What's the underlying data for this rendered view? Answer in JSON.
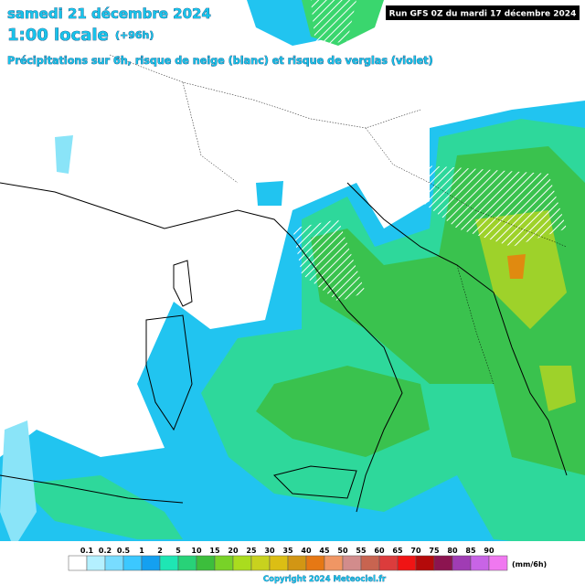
{
  "header": {
    "date": "samedi 21 décembre 2024",
    "time": "1:00 locale",
    "lead": "(+96h)",
    "subtitle": "Précipitations sur 6h, risque de neige (blanc) et risque de verglas (violet)",
    "run": "Run GFS 0Z du mardi 17 décembre 2024"
  },
  "legend": {
    "values": [
      "0.1",
      "0.2",
      "0.5",
      "1",
      "2",
      "5",
      "10",
      "15",
      "20",
      "25",
      "30",
      "35",
      "40",
      "45",
      "50",
      "55",
      "60",
      "65",
      "70",
      "75",
      "80",
      "85",
      "90"
    ],
    "unit": "(mm/6h)"
  },
  "footer": {
    "copyright": "Copyright 2024 Meteociel.fr"
  }
}
